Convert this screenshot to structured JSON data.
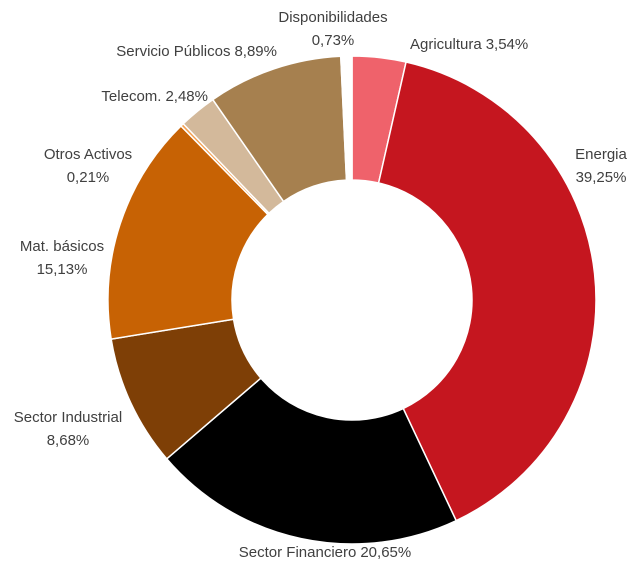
{
  "chart_data": {
    "type": "donut",
    "categories": [
      "Agricultura",
      "Energia",
      "Sector Financiero",
      "Sector Industrial",
      "Mat. básicos",
      "Otros Activos",
      "Telecom.",
      "Servicio Públicos",
      "Disponibilidades"
    ],
    "values": [
      3.54,
      39.25,
      20.65,
      8.68,
      15.13,
      0.21,
      2.48,
      8.89,
      0.73
    ],
    "value_labels": [
      "3,54%",
      "39,25%",
      "20,65%",
      "8,68%",
      "15,13%",
      "0,21%",
      "2,48%",
      "8,89%",
      "0,73%"
    ],
    "colors": [
      "#ef626b",
      "#c5161f",
      "#000000",
      "#7e3f06",
      "#c76204",
      "#f5a050",
      "#d3b99b",
      "#a6804f",
      "#ffffff"
    ]
  }
}
